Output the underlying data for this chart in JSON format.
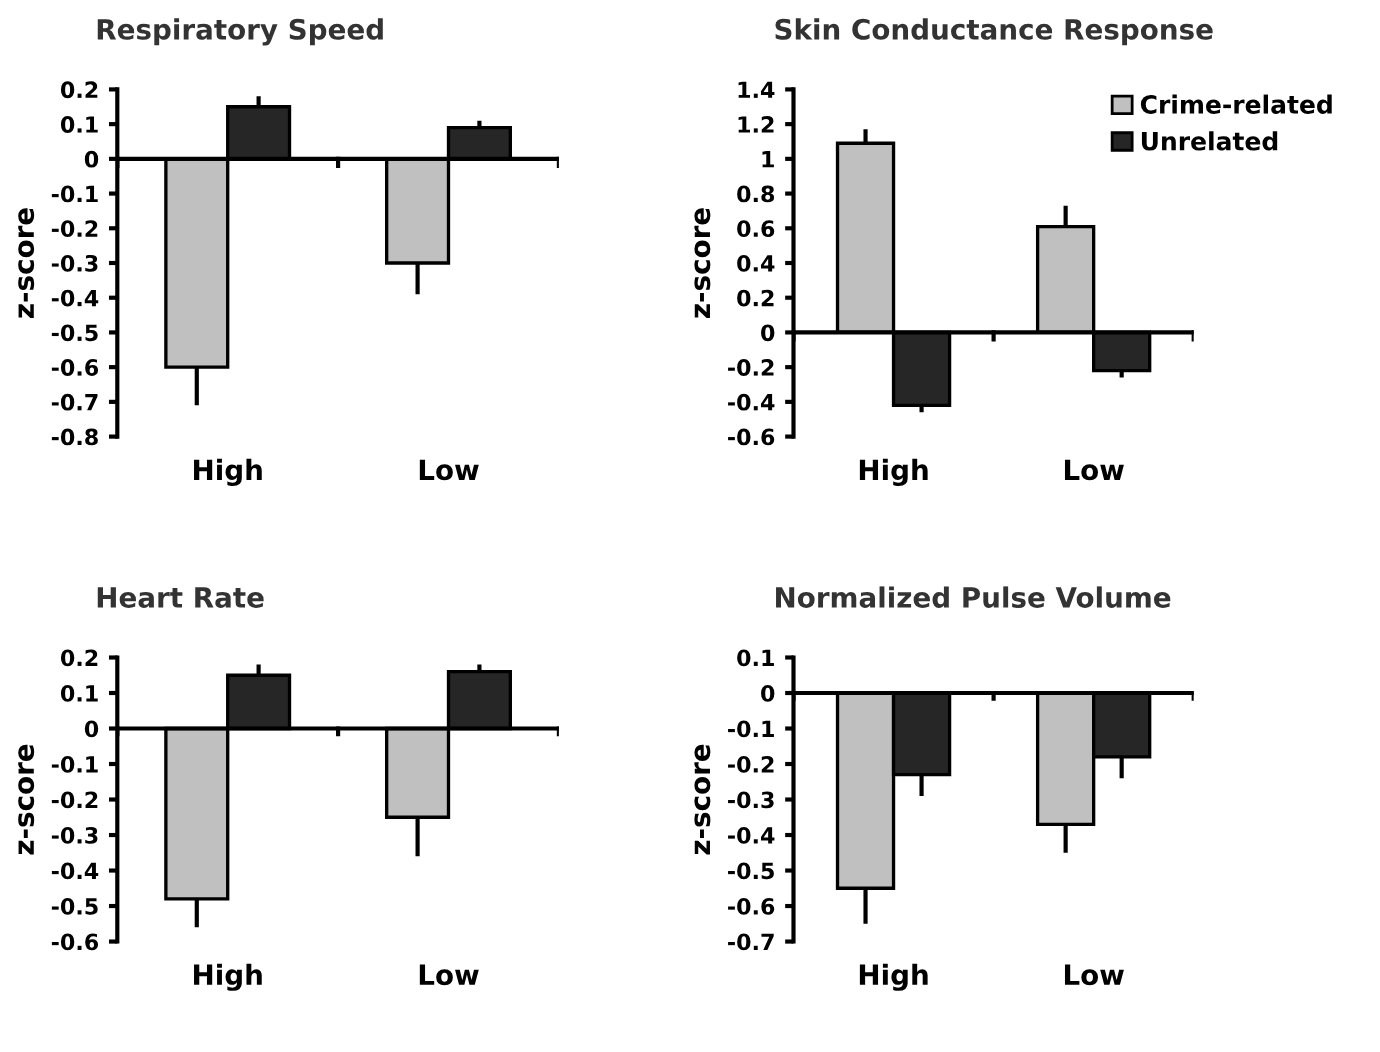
{
  "chart_data": [
    {
      "type": "bar",
      "title": "Respiratory Speed",
      "ylabel": "z-score",
      "categories": [
        "High",
        "Low"
      ],
      "ylim": [
        -0.8,
        0.2
      ],
      "yticks": [
        -0.8,
        -0.7,
        -0.6,
        -0.5,
        -0.4,
        -0.3,
        -0.2,
        -0.1,
        0,
        0.1,
        0.2
      ],
      "legend": false,
      "series": [
        {
          "color": "#c0c0c0",
          "values": [
            -0.6,
            -0.3
          ],
          "errors": [
            [
              -0.71,
              -0.6
            ],
            [
              -0.39,
              -0.3
            ]
          ]
        },
        {
          "color": "#262626",
          "values": [
            0.15,
            0.09
          ],
          "errors": [
            [
              0.15,
              0.18
            ],
            [
              0.09,
              0.11
            ]
          ]
        }
      ]
    },
    {
      "type": "bar",
      "title": "Skin Conductance Response",
      "ylabel": "z-score",
      "categories": [
        "High",
        "Low"
      ],
      "ylim": [
        -0.6,
        1.4
      ],
      "yticks": [
        -0.6,
        -0.4,
        -0.2,
        0,
        0.2,
        0.4,
        0.6,
        0.8,
        1,
        1.2,
        1.4
      ],
      "legend": "top right",
      "series": [
        {
          "name": "Crime-related",
          "color": "#c0c0c0",
          "values": [
            1.09,
            0.61
          ],
          "errors": [
            [
              1.09,
              1.17
            ],
            [
              0.61,
              0.73
            ]
          ]
        },
        {
          "name": "Unrelated",
          "color": "#262626",
          "values": [
            -0.42,
            -0.22
          ],
          "errors": [
            [
              -0.46,
              -0.42
            ],
            [
              -0.26,
              -0.22
            ]
          ]
        }
      ]
    },
    {
      "type": "bar",
      "title": "Heart Rate",
      "ylabel": "z-score",
      "categories": [
        "High",
        "Low"
      ],
      "ylim": [
        -0.6,
        0.2
      ],
      "yticks": [
        -0.6,
        -0.5,
        -0.4,
        -0.3,
        -0.2,
        -0.1,
        0,
        0.1,
        0.2
      ],
      "legend": false,
      "series": [
        {
          "color": "#c0c0c0",
          "values": [
            -0.48,
            -0.25
          ],
          "errors": [
            [
              -0.56,
              -0.48
            ],
            [
              -0.36,
              -0.25
            ]
          ]
        },
        {
          "color": "#262626",
          "values": [
            0.15,
            0.16
          ],
          "errors": [
            [
              0.15,
              0.18
            ],
            [
              0.16,
              0.18
            ]
          ]
        }
      ]
    },
    {
      "type": "bar",
      "title": "Normalized Pulse Volume",
      "ylabel": "z-score",
      "categories": [
        "High",
        "Low"
      ],
      "ylim": [
        -0.7,
        0.1
      ],
      "yticks": [
        -0.7,
        -0.6,
        -0.5,
        -0.4,
        -0.3,
        -0.2,
        -0.1,
        0,
        0.1
      ],
      "legend": false,
      "series": [
        {
          "color": "#c0c0c0",
          "values": [
            -0.55,
            -0.37
          ],
          "errors": [
            [
              -0.65,
              -0.55
            ],
            [
              -0.45,
              -0.37
            ]
          ]
        },
        {
          "color": "#262626",
          "values": [
            -0.23,
            -0.18
          ],
          "errors": [
            [
              -0.29,
              -0.23
            ],
            [
              -0.24,
              -0.18
            ]
          ]
        }
      ]
    }
  ]
}
